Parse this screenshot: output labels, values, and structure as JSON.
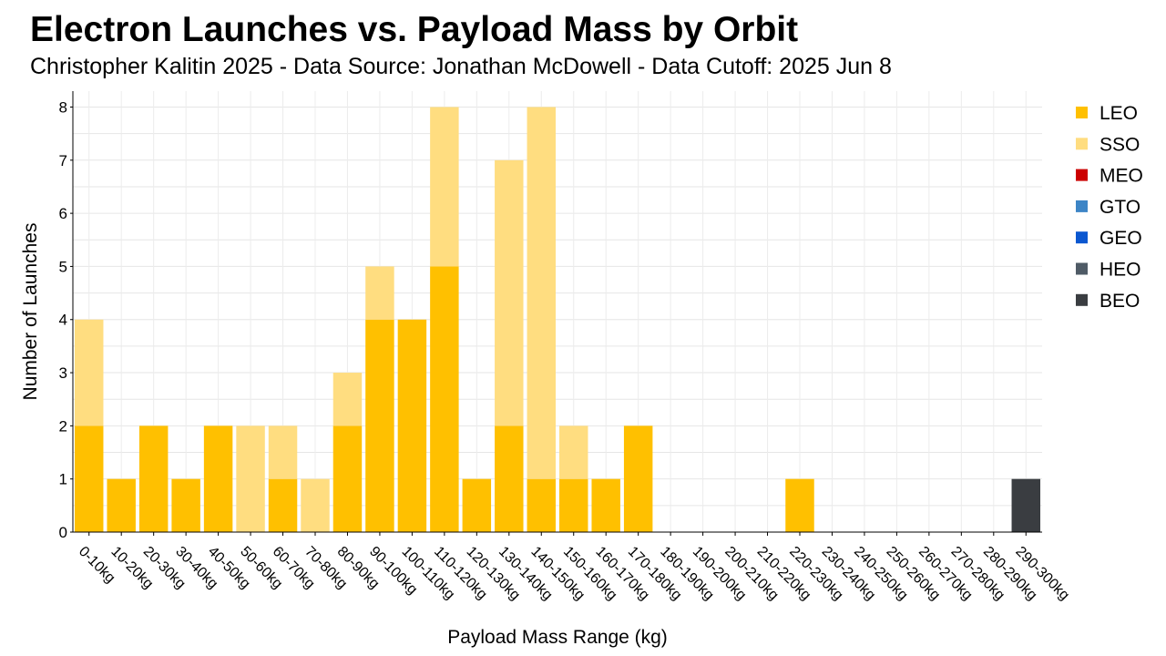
{
  "chart_data": {
    "type": "bar",
    "stacked": true,
    "title": "Electron Launches vs. Payload Mass by Orbit",
    "subtitle": "Christopher Kalitin 2025 - Data Source: Jonathan McDowell - Data Cutoff: 2025 Jun 8",
    "xlabel": "Payload Mass Range (kg)",
    "ylabel": "Number of Launches",
    "ylim": [
      0,
      8.3
    ],
    "yticks": [
      0,
      1,
      2,
      3,
      4,
      5,
      6,
      7,
      8
    ],
    "grid": true,
    "legend_position": "right",
    "categories": [
      "0-10kg",
      "10-20kg",
      "20-30kg",
      "30-40kg",
      "40-50kg",
      "50-60kg",
      "60-70kg",
      "70-80kg",
      "80-90kg",
      "90-100kg",
      "100-110kg",
      "110-120kg",
      "120-130kg",
      "130-140kg",
      "140-150kg",
      "150-160kg",
      "160-170kg",
      "170-180kg",
      "180-190kg",
      "190-200kg",
      "200-210kg",
      "210-220kg",
      "220-230kg",
      "230-240kg",
      "240-250kg",
      "250-260kg",
      "260-270kg",
      "270-280kg",
      "280-290kg",
      "290-300kg"
    ],
    "series": [
      {
        "name": "LEO",
        "color": "#FFC000",
        "values": [
          2,
          1,
          2,
          1,
          2,
          0,
          1,
          0,
          2,
          4,
          4,
          5,
          1,
          2,
          1,
          1,
          1,
          2,
          0,
          0,
          0,
          0,
          1,
          0,
          0,
          0,
          0,
          0,
          0,
          0
        ]
      },
      {
        "name": "SSO",
        "color": "#FFDD80",
        "values": [
          2,
          0,
          0,
          0,
          0,
          2,
          1,
          1,
          1,
          1,
          0,
          3,
          0,
          5,
          7,
          1,
          0,
          0,
          0,
          0,
          0,
          0,
          0,
          0,
          0,
          0,
          0,
          0,
          0,
          0
        ]
      },
      {
        "name": "MEO",
        "color": "#CC0000",
        "values": [
          0,
          0,
          0,
          0,
          0,
          0,
          0,
          0,
          0,
          0,
          0,
          0,
          0,
          0,
          0,
          0,
          0,
          0,
          0,
          0,
          0,
          0,
          0,
          0,
          0,
          0,
          0,
          0,
          0,
          0
        ]
      },
      {
        "name": "GTO",
        "color": "#3D85C6",
        "values": [
          0,
          0,
          0,
          0,
          0,
          0,
          0,
          0,
          0,
          0,
          0,
          0,
          0,
          0,
          0,
          0,
          0,
          0,
          0,
          0,
          0,
          0,
          0,
          0,
          0,
          0,
          0,
          0,
          0,
          0
        ]
      },
      {
        "name": "GEO",
        "color": "#0B57D0",
        "values": [
          0,
          0,
          0,
          0,
          0,
          0,
          0,
          0,
          0,
          0,
          0,
          0,
          0,
          0,
          0,
          0,
          0,
          0,
          0,
          0,
          0,
          0,
          0,
          0,
          0,
          0,
          0,
          0,
          0,
          0
        ]
      },
      {
        "name": "HEO",
        "color": "#4F5B66",
        "values": [
          0,
          0,
          0,
          0,
          0,
          0,
          0,
          0,
          0,
          0,
          0,
          0,
          0,
          0,
          0,
          0,
          0,
          0,
          0,
          0,
          0,
          0,
          0,
          0,
          0,
          0,
          0,
          0,
          0,
          0
        ]
      },
      {
        "name": "BEO",
        "color": "#3A3D41",
        "values": [
          0,
          0,
          0,
          0,
          0,
          0,
          0,
          0,
          0,
          0,
          0,
          0,
          0,
          0,
          0,
          0,
          0,
          0,
          0,
          0,
          0,
          0,
          0,
          0,
          0,
          0,
          0,
          0,
          0,
          1
        ]
      }
    ]
  }
}
